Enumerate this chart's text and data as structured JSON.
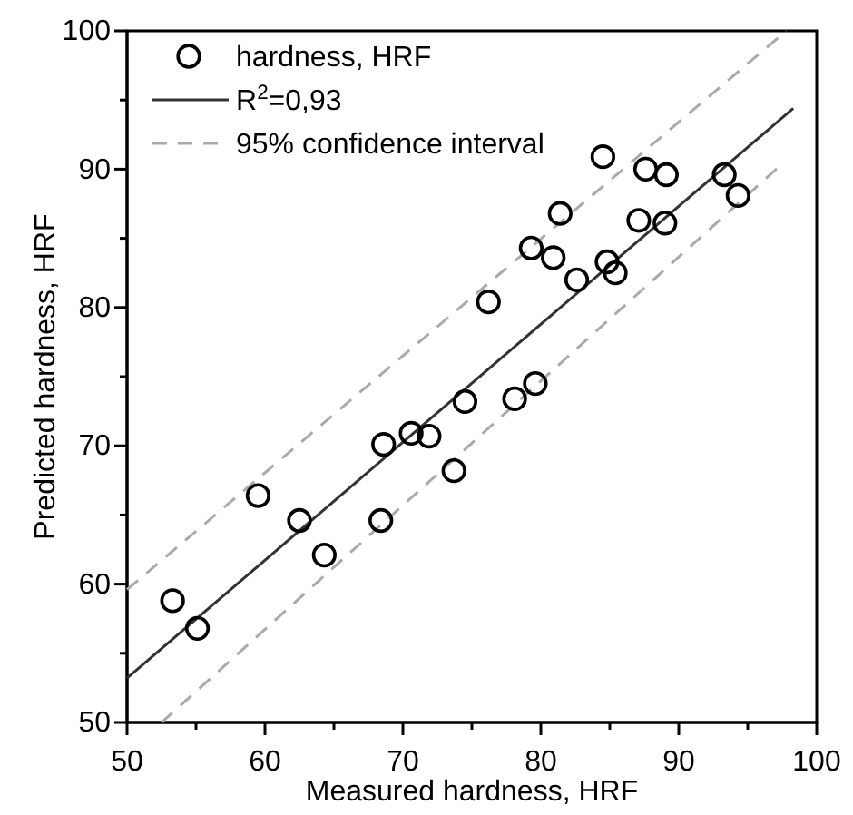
{
  "chart_data": {
    "type": "scatter",
    "xlabel": "Measured hardness, HRF",
    "ylabel": "Predicted hardness, HRF",
    "xlim": [
      50,
      100
    ],
    "ylim": [
      50,
      100
    ],
    "xticks": [
      50,
      {
        "value": 55,
        "label": null
      },
      60,
      {
        "value": 65,
        "label": null
      },
      70,
      {
        "value": 75,
        "label": null
      },
      80,
      {
        "value": 85,
        "label": null
      },
      90,
      {
        "value": 95,
        "label": null
      },
      100
    ],
    "yticks": [
      50,
      {
        "value": 55,
        "label": null
      },
      60,
      {
        "value": 65,
        "label": null
      },
      70,
      {
        "value": 75,
        "label": null
      },
      80,
      {
        "value": 85,
        "label": null
      },
      90,
      {
        "value": 95,
        "label": null
      },
      100
    ],
    "grid": false,
    "legend": "top left",
    "series": [
      {
        "name": "hardness, HRF",
        "marker": "circle",
        "color": "#000000",
        "x": [
          53.3,
          55.1,
          59.5,
          62.5,
          64.3,
          68.4,
          68.6,
          70.6,
          71.9,
          73.7,
          74.5,
          76.2,
          78.1,
          79.6,
          79.3,
          80.9,
          81.4,
          82.6,
          84.8,
          85.4,
          84.5,
          87.1,
          87.6,
          89.1,
          89.0,
          93.3,
          94.3
        ],
        "values": [
          58.8,
          56.8,
          66.4,
          64.6,
          62.1,
          64.6,
          70.1,
          70.9,
          70.7,
          68.2,
          73.2,
          80.4,
          73.4,
          74.5,
          84.3,
          83.6,
          86.8,
          82.0,
          83.3,
          82.5,
          90.9,
          86.3,
          90.0,
          89.6,
          86.1,
          89.6,
          88.1
        ]
      },
      {
        "name": "R$^{2}$=0,93",
        "type": "line",
        "line_style": "solid",
        "color": "#333333",
        "x": [
          50,
          98.3
        ],
        "values": [
          53.2,
          94.4
        ]
      },
      {
        "name": "95% confidence interval",
        "type": "line",
        "line_style": "dashed",
        "color": "#aaaaaa",
        "x": [
          50,
          97.8,
          null,
          52.5,
          97.4
        ],
        "values": [
          59.6,
          100,
          null,
          50,
          90.3
        ]
      }
    ]
  }
}
